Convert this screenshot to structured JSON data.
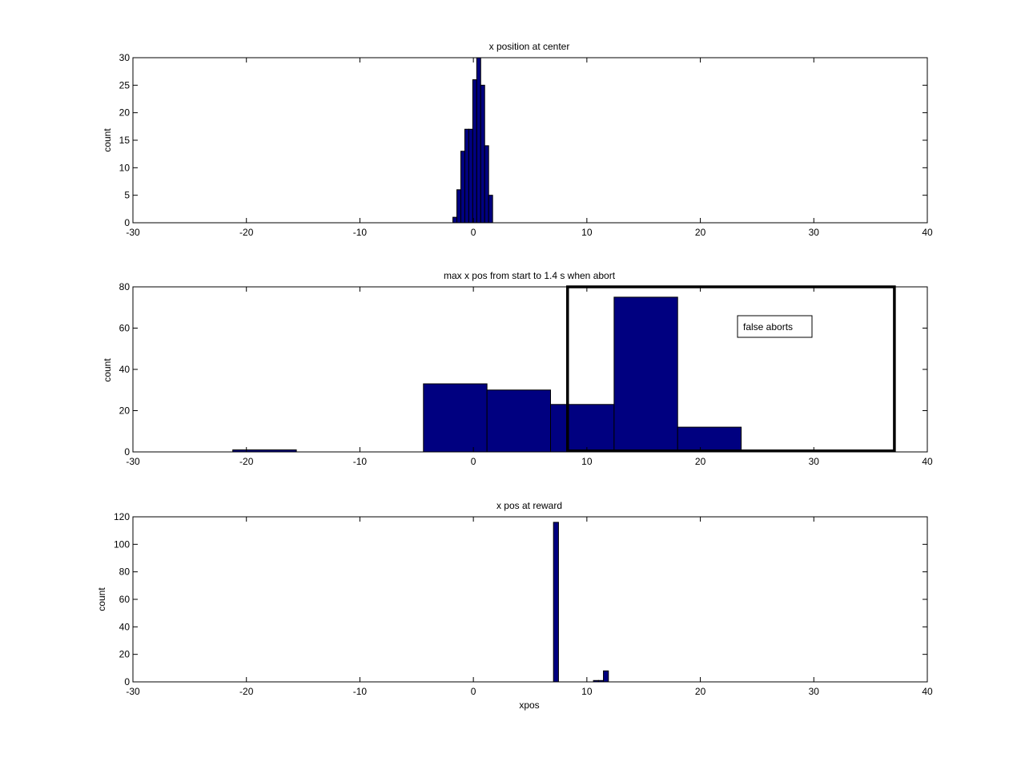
{
  "figure": {
    "background": "#ffffff",
    "bar_color": "#000080",
    "bar_edge": "#000000"
  },
  "chart_data": [
    {
      "type": "bar",
      "title": "x position at center",
      "xlabel": "",
      "ylabel": "count",
      "xlim": [
        -30,
        40
      ],
      "ylim": [
        0,
        30
      ],
      "xticks": [
        -30,
        -20,
        -10,
        0,
        10,
        20,
        30,
        40
      ],
      "yticks": [
        0,
        5,
        10,
        15,
        20,
        25,
        30
      ],
      "bin_width": 0.35,
      "x": [
        -1.63,
        -1.28,
        -0.93,
        -0.58,
        -0.23,
        0.12,
        0.47,
        0.82,
        1.17,
        1.52,
        1.87
      ],
      "values": [
        1,
        6,
        13,
        17,
        17,
        26,
        30,
        25,
        14,
        5,
        0
      ],
      "grid": false
    },
    {
      "type": "bar",
      "title": "max x pos from start to 1.4 s when abort",
      "xlabel": "",
      "ylabel": "count",
      "xlim": [
        -30,
        40
      ],
      "ylim": [
        0,
        80
      ],
      "xticks": [
        -30,
        -20,
        -10,
        0,
        10,
        20,
        30,
        40
      ],
      "yticks": [
        0,
        20,
        40,
        60,
        80
      ],
      "bin_width": 5.6,
      "x": [
        -18.4,
        -12.8,
        -7.2,
        -1.6,
        4.0,
        9.6,
        15.2,
        20.8,
        26.4,
        32.0
      ],
      "values": [
        1,
        0,
        0,
        33,
        30,
        23,
        75,
        12,
        0,
        0
      ],
      "annotations": [
        {
          "kind": "textbox",
          "text": "false aborts"
        },
        {
          "kind": "rectangle",
          "x_range": [
            8.3,
            37.1
          ],
          "y_range": [
            0.5,
            80
          ]
        }
      ],
      "grid": false
    },
    {
      "type": "bar",
      "title": "x pos at reward",
      "xlabel": "xpos",
      "ylabel": "count",
      "xlim": [
        -30,
        40
      ],
      "ylim": [
        0,
        120
      ],
      "xticks": [
        -30,
        -20,
        -10,
        0,
        10,
        20,
        30,
        40
      ],
      "yticks": [
        0,
        20,
        40,
        60,
        80,
        100,
        120
      ],
      "bin_width": 0.44,
      "x": [
        7.28,
        10.8,
        11.24,
        11.68
      ],
      "values": [
        116,
        1,
        1,
        8
      ],
      "grid": false
    }
  ]
}
